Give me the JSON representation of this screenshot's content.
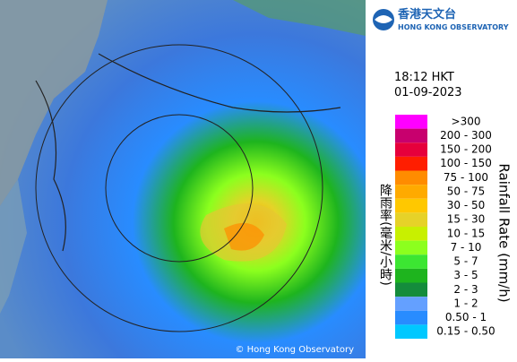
{
  "header": {
    "logo_chinese": "香港天文台",
    "logo_english": "HONG KONG OBSERVATORY"
  },
  "timestamp": {
    "time": "18:12 HKT",
    "date": "01-09-2023"
  },
  "legend": {
    "title_chinese": "降雨率(毫米/小時)",
    "title_english": "Rainfall Rate (mm/h)",
    "items": [
      {
        "label": ">300",
        "color": "#ff00ff"
      },
      {
        "label": "200 - 300",
        "color": "#c8006e"
      },
      {
        "label": "150 - 200",
        "color": "#e6003c"
      },
      {
        "label": "100 - 150",
        "color": "#ff1e00"
      },
      {
        "label": "75 - 100",
        "color": "#ff8c00"
      },
      {
        "label": "50 - 75",
        "color": "#ffaa00"
      },
      {
        "label": "30 - 50",
        "color": "#ffc800"
      },
      {
        "label": "15 - 30",
        "color": "#e6d228"
      },
      {
        "label": "10 - 15",
        "color": "#c8f000"
      },
      {
        "label": "7 - 10",
        "color": "#8cff1e"
      },
      {
        "label": "5 - 7",
        "color": "#3ce632"
      },
      {
        "label": "3 - 5",
        "color": "#1eb41e"
      },
      {
        "label": "2 - 3",
        "color": "#148c3c"
      },
      {
        "label": "1 - 2",
        "color": "#64a0ff"
      },
      {
        "label": "0.50 - 1",
        "color": "#288cff"
      },
      {
        "label": "0.15 - 0.50",
        "color": "#00c8ff"
      }
    ]
  },
  "credit": "© Hong Kong Observatory"
}
